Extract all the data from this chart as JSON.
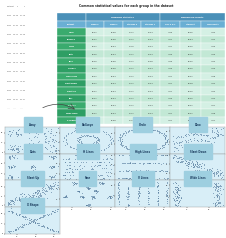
{
  "title": "Common statistical values for each group in the dataset",
  "col_headers": [
    "Dataset",
    "Mean x",
    "Mean y",
    "Std Dev x",
    "Std Dev y",
    "Corr x & y",
    "Intercept",
    "Coefficients"
  ],
  "datasets": [
    "Away",
    "Bullseye",
    "Circle",
    "Dots",
    "Dino",
    "H Lines",
    "High Lines",
    "Slant Down",
    "Slant Up",
    "Star",
    "V Lines",
    "Wide Lines",
    "X Shape"
  ],
  "values": [
    [
      54.27,
      47.83,
      16.77,
      26.94,
      -0.06,
      53.45,
      -0.1
    ],
    [
      54.27,
      47.83,
      16.77,
      26.94,
      -0.07,
      53.84,
      -0.11
    ],
    [
      54.27,
      47.84,
      16.76,
      26.94,
      -0.07,
      53.46,
      -0.06
    ],
    [
      54.26,
      47.84,
      16.77,
      26.94,
      -0.06,
      53.46,
      -0.06
    ],
    [
      54.26,
      47.83,
      16.77,
      26.93,
      -0.06,
      53.92,
      -0.1
    ],
    [
      54.26,
      47.83,
      16.77,
      26.94,
      -0.06,
      53.46,
      -0.06
    ],
    [
      54.27,
      47.84,
      16.77,
      26.94,
      -0.07,
      53.47,
      -0.08
    ],
    [
      54.27,
      47.84,
      16.77,
      26.94,
      -0.07,
      53.93,
      -0.11
    ],
    [
      54.27,
      47.84,
      16.77,
      26.94,
      -0.07,
      53.46,
      -0.1
    ],
    [
      54.27,
      47.84,
      16.77,
      26.94,
      -0.06,
      53.46,
      -0.1
    ],
    [
      54.27,
      47.84,
      16.77,
      26.94,
      -0.07,
      53.47,
      -0.07
    ],
    [
      54.27,
      47.84,
      16.77,
      26.94,
      -0.07,
      53.47,
      -0.08
    ],
    [
      54.26,
      47.83,
      16.77,
      26.94,
      -0.07,
      53.45,
      -0.07
    ]
  ],
  "scatter_names": [
    "Away",
    "Bullseye",
    "Circle",
    "Dino",
    "Dots",
    "H Lines",
    "High Lines",
    "Slant Down",
    "Slant Up",
    "Star",
    "V Lines",
    "Wide Lines",
    "X Shape"
  ],
  "header_blue": "#4a90b8",
  "subheader_blue": "#6aafd4",
  "name_green_even": "#3aab6e",
  "name_green_odd": "#2e9e64",
  "data_even": "#d4f0e4",
  "data_odd": "#c2e8d5",
  "scatter_bg": "#d8eef7",
  "scatter_title_bg": "#9ecfe0",
  "scatter_dot": "#5a7fa0",
  "left_text": "#555555",
  "arrow_color": "#444444",
  "title_fontsize": 2.2,
  "header_fontsize": 1.5,
  "col_header_fontsize": 1.4,
  "cell_fontsize": 1.35,
  "scatter_title_fontsize": 1.8,
  "tick_fontsize": 1.3,
  "left_raw": [
    "dataset   x      y",
    "dino  55.38  97.18",
    "dino  51.53  96.03",
    "dino  46.14  94.48",
    "dino  42.81  91.40",
    "dino  40.74  88.32",
    "dino  38.74  84.86",
    "dino  35.97  79.03",
    "dino  34.12  75.01",
    "dino  32.73  71.00",
    "dino  29.97  64.41",
    "...   ...    ..."
  ]
}
